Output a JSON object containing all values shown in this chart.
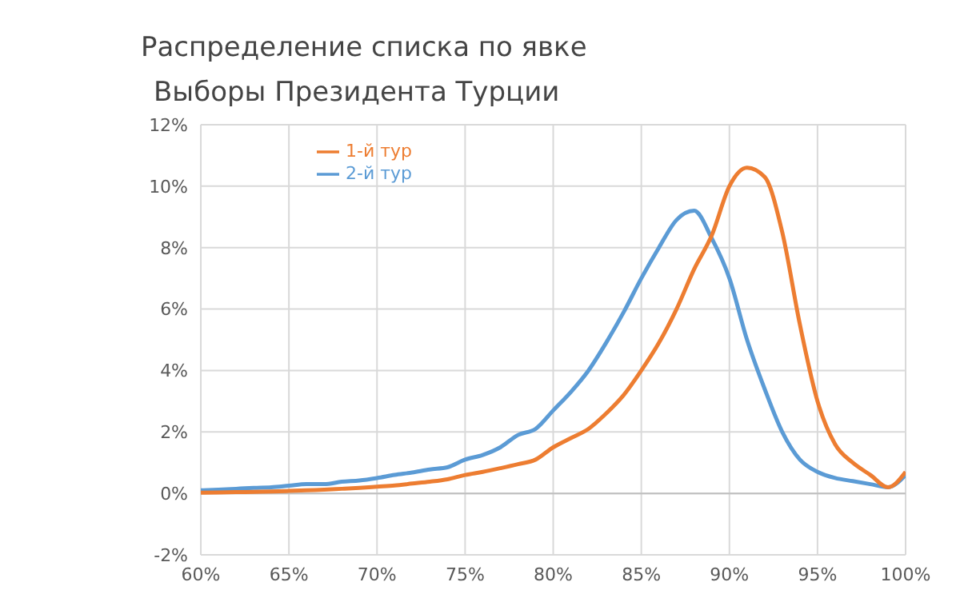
{
  "chart_data": {
    "type": "line",
    "title": "Распределение списка по явке",
    "subtitle": "Выборы Президента Турции",
    "x": [
      60,
      61,
      62,
      63,
      64,
      65,
      66,
      67,
      68,
      69,
      70,
      71,
      72,
      73,
      74,
      75,
      76,
      77,
      78,
      79,
      80,
      81,
      82,
      83,
      84,
      85,
      86,
      87,
      88,
      89,
      90,
      91,
      92,
      93,
      94,
      95,
      96,
      97,
      98,
      99,
      100
    ],
    "series": [
      {
        "name": "2-й тур",
        "color": "#5b9bd5",
        "values": [
          0.1,
          0.12,
          0.15,
          0.18,
          0.2,
          0.25,
          0.3,
          0.3,
          0.38,
          0.42,
          0.5,
          0.6,
          0.68,
          0.78,
          0.85,
          1.1,
          1.25,
          1.5,
          1.9,
          2.1,
          2.7,
          3.3,
          4.0,
          4.9,
          5.9,
          7.0,
          8.0,
          8.9,
          9.2,
          8.3,
          7.0,
          5.0,
          3.4,
          2.0,
          1.1,
          0.7,
          0.5,
          0.4,
          0.3,
          0.2,
          0.6
        ]
      },
      {
        "name": "1-й тур",
        "color": "#ed7d31",
        "values": [
          0.02,
          0.03,
          0.04,
          0.05,
          0.06,
          0.08,
          0.1,
          0.12,
          0.15,
          0.18,
          0.22,
          0.26,
          0.32,
          0.38,
          0.46,
          0.6,
          0.7,
          0.82,
          0.95,
          1.1,
          1.5,
          1.8,
          2.1,
          2.6,
          3.2,
          4.0,
          4.9,
          6.0,
          7.3,
          8.4,
          10.0,
          10.6,
          10.3,
          8.5,
          5.5,
          3.0,
          1.6,
          1.0,
          0.6,
          0.2,
          0.7
        ]
      }
    ],
    "xlim": [
      60,
      100
    ],
    "xticks": [
      {
        "value": 60,
        "label": "60%"
      },
      {
        "value": 65,
        "label": "65%"
      },
      {
        "value": 70,
        "label": "70%"
      },
      {
        "value": 75,
        "label": "75%"
      },
      {
        "value": 80,
        "label": "80%"
      },
      {
        "value": 85,
        "label": "85%"
      },
      {
        "value": 90,
        "label": "90%"
      },
      {
        "value": 95,
        "label": "95%"
      },
      {
        "value": 100,
        "label": "100%"
      }
    ],
    "ylim": [
      -2,
      12
    ],
    "yticks": [
      {
        "value": -2,
        "label": "-2%"
      },
      {
        "value": 0,
        "label": "0%"
      },
      {
        "value": 2,
        "label": "2%"
      },
      {
        "value": 4,
        "label": "4%"
      },
      {
        "value": 6,
        "label": "6%"
      },
      {
        "value": 8,
        "label": "8%"
      },
      {
        "value": 10,
        "label": "10%"
      },
      {
        "value": 12,
        "label": "12%"
      }
    ],
    "grid": true,
    "legend": "top left",
    "marker": "none",
    "line_style": "solid"
  }
}
